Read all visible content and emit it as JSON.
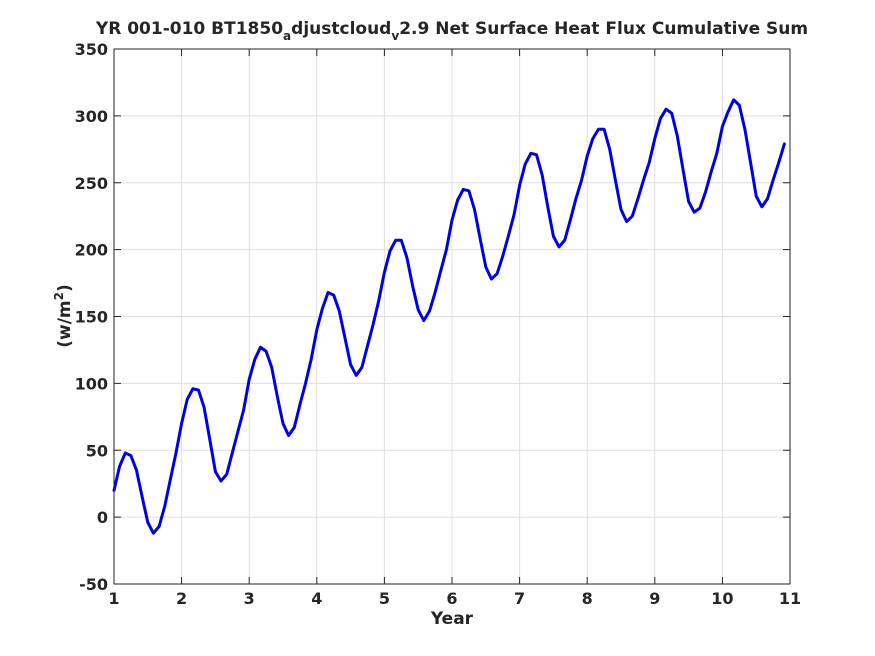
{
  "chart_data": {
    "type": "line",
    "title_parts": {
      "main": "YR 001-010 BT1850",
      "sub1": "a",
      "mid": "djustcloud",
      "sub2": "v",
      "end": "2.9 Net Surface Heat Flux  Cumulative Sum"
    },
    "xlabel": "Year",
    "ylabel_parts": {
      "base": "(w/m",
      "sup": "2",
      "close": ")"
    },
    "xlim": [
      1,
      11
    ],
    "ylim": [
      -50,
      350
    ],
    "xticks": [
      "1",
      "2",
      "3",
      "4",
      "5",
      "6",
      "7",
      "8",
      "9",
      "10",
      "11"
    ],
    "yticks": [
      "-50",
      "0",
      "50",
      "100",
      "150",
      "200",
      "250",
      "300",
      "350"
    ],
    "grid": true,
    "series": [
      {
        "color": "#0000e6",
        "x": [
          1.0,
          1.083,
          1.167,
          1.25,
          1.333,
          1.417,
          1.5,
          1.583,
          1.667,
          1.75,
          1.833,
          1.917,
          2.0,
          2.083,
          2.167,
          2.25,
          2.333,
          2.417,
          2.5,
          2.583,
          2.667,
          2.75,
          2.833,
          2.917,
          3.0,
          3.083,
          3.167,
          3.25,
          3.333,
          3.417,
          3.5,
          3.583,
          3.667,
          3.75,
          3.833,
          3.917,
          4.0,
          4.083,
          4.167,
          4.25,
          4.333,
          4.417,
          4.5,
          4.583,
          4.667,
          4.75,
          4.833,
          4.917,
          5.0,
          5.083,
          5.167,
          5.25,
          5.333,
          5.417,
          5.5,
          5.583,
          5.667,
          5.75,
          5.833,
          5.917,
          6.0,
          6.083,
          6.167,
          6.25,
          6.333,
          6.417,
          6.5,
          6.583,
          6.667,
          6.75,
          6.833,
          6.917,
          7.0,
          7.083,
          7.167,
          7.25,
          7.333,
          7.417,
          7.5,
          7.583,
          7.667,
          7.75,
          7.833,
          7.917,
          8.0,
          8.083,
          8.167,
          8.25,
          8.333,
          8.417,
          8.5,
          8.583,
          8.667,
          8.75,
          8.833,
          8.917,
          9.0,
          9.083,
          9.167,
          9.25,
          9.333,
          9.417,
          9.5,
          9.583,
          9.667,
          9.75,
          9.833,
          9.917,
          10.0,
          10.083,
          10.167,
          10.25,
          10.333,
          10.417,
          10.5,
          10.583,
          10.667,
          10.75,
          10.833,
          10.917
        ],
        "y": [
          20,
          38,
          48,
          46,
          35,
          15,
          -4,
          -12,
          -7,
          8,
          28,
          48,
          70,
          88,
          96,
          95,
          82,
          58,
          34,
          27,
          32,
          48,
          64,
          80,
          103,
          118,
          127,
          124,
          112,
          90,
          70,
          61,
          67,
          84,
          100,
          118,
          140,
          156,
          168,
          166,
          154,
          134,
          114,
          106,
          112,
          128,
          144,
          162,
          183,
          199,
          207,
          207,
          194,
          173,
          155,
          147,
          154,
          168,
          184,
          200,
          222,
          237,
          245,
          244,
          230,
          208,
          187,
          178,
          182,
          195,
          210,
          226,
          248,
          264,
          272,
          271,
          256,
          232,
          210,
          202,
          207,
          222,
          238,
          252,
          270,
          283,
          290,
          290,
          275,
          252,
          230,
          221,
          225,
          238,
          252,
          265,
          283,
          298,
          305,
          302,
          285,
          260,
          236,
          228,
          231,
          243,
          258,
          272,
          292,
          303,
          312,
          308,
          290,
          265,
          240,
          232,
          238,
          252,
          265,
          279
        ]
      }
    ]
  }
}
